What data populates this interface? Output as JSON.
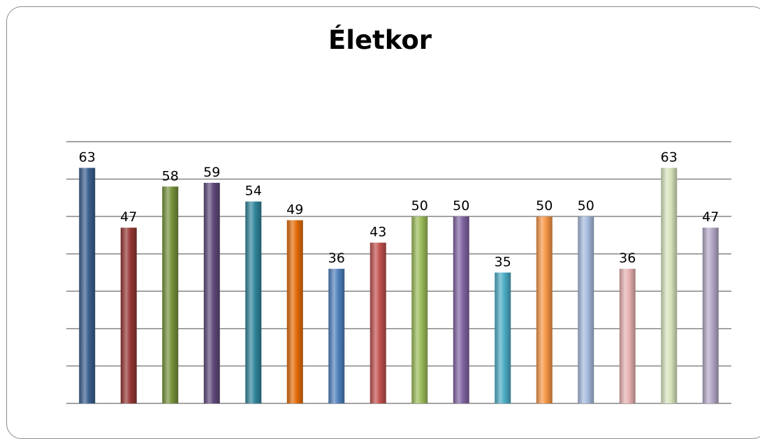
{
  "chart_data": {
    "type": "bar",
    "title": "Életkor",
    "values": [
      63,
      47,
      58,
      59,
      54,
      49,
      36,
      43,
      50,
      50,
      35,
      50,
      50,
      36,
      63,
      47
    ],
    "ylim": [
      0,
      70
    ],
    "grid": true,
    "data_labels": [
      "63",
      "47",
      "58",
      "59",
      "54",
      "49",
      "36",
      "43",
      "50",
      "50",
      "35",
      "50",
      "50",
      "36",
      "63",
      "47"
    ],
    "colors": [
      "#3a5f8e",
      "#953734",
      "#76923c",
      "#5f497a",
      "#31859c",
      "#e36c09",
      "#4f81bd",
      "#c0504d",
      "#9bbb59",
      "#8064a2",
      "#4bacc6",
      "#f79646",
      "#a6bbdd",
      "#e6b0b0",
      "#d7e4bd",
      "#b3a8c7"
    ]
  }
}
